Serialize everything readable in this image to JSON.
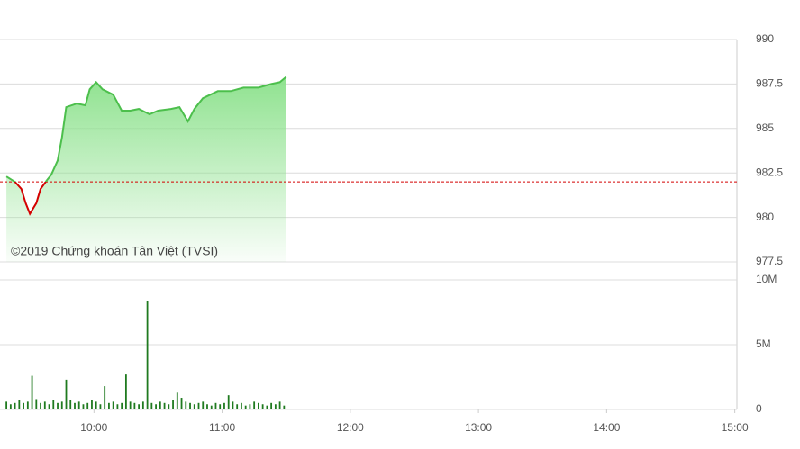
{
  "chart_data": [
    {
      "type": "line",
      "annotation": "©2019 Chứng khoán Tân Việt (TVSI)",
      "x": [
        559,
        563,
        566,
        568,
        570,
        572,
        573,
        575,
        578,
        580,
        583,
        585,
        587,
        592,
        596,
        598,
        601,
        604,
        609,
        613,
        617,
        621,
        626,
        630,
        636,
        640,
        644,
        647,
        651,
        658,
        664,
        670,
        677,
        683,
        687,
        690
      ],
      "values": [
        982.3,
        982.0,
        981.6,
        980.8,
        980.2,
        980.6,
        980.8,
        981.6,
        982.1,
        982.4,
        983.2,
        984.5,
        986.2,
        986.4,
        986.3,
        987.2,
        987.6,
        987.2,
        986.9,
        986.0,
        986.0,
        986.1,
        985.8,
        986.0,
        986.1,
        986.2,
        985.4,
        986.1,
        986.7,
        987.1,
        987.1,
        987.3,
        987.3,
        987.5,
        987.6,
        987.9
      ],
      "color": "#4cbf4c",
      "below_color": "#d40000",
      "fill_color": "#8fe28f",
      "reference_line": 982,
      "reference_color": "#d40000",
      "xlim": [
        556,
        901
      ],
      "ylim": [
        977.5,
        990
      ],
      "yticks": [
        977.5,
        980,
        982.5,
        985,
        987.5,
        990
      ],
      "grid": true
    },
    {
      "type": "bar",
      "x": [
        559,
        561,
        563,
        565,
        567,
        569,
        571,
        573,
        575,
        577,
        579,
        581,
        583,
        585,
        587,
        589,
        591,
        593,
        595,
        597,
        599,
        601,
        603,
        605,
        607,
        609,
        611,
        613,
        615,
        617,
        619,
        621,
        623,
        625,
        627,
        629,
        631,
        633,
        635,
        637,
        639,
        641,
        643,
        645,
        647,
        649,
        651,
        653,
        655,
        657,
        659,
        661,
        663,
        665,
        667,
        669,
        671,
        673,
        675,
        677,
        679,
        681,
        683,
        685,
        687,
        689
      ],
      "values": [
        600000,
        400000,
        500000,
        700000,
        500000,
        600000,
        2600000,
        800000,
        500000,
        600000,
        400000,
        700000,
        500000,
        600000,
        2300000,
        700000,
        500000,
        600000,
        400000,
        500000,
        700000,
        600000,
        400000,
        1800000,
        500000,
        600000,
        400000,
        500000,
        2700000,
        600000,
        500000,
        400000,
        600000,
        8400000,
        500000,
        400000,
        600000,
        500000,
        400000,
        700000,
        1300000,
        900000,
        600000,
        500000,
        400000,
        500000,
        600000,
        400000,
        300000,
        500000,
        400000,
        500000,
        1100000,
        600000,
        400000,
        500000,
        300000,
        400000,
        600000,
        500000,
        400000,
        300000,
        500000,
        400000,
        600000,
        300000
      ],
      "color": "#1f7a1f",
      "xlim": [
        556,
        901
      ],
      "xticks": [
        {
          "value": 600,
          "label": "10:00"
        },
        {
          "value": 660,
          "label": "11:00"
        },
        {
          "value": 720,
          "label": "12:00"
        },
        {
          "value": 780,
          "label": "13:00"
        },
        {
          "value": 840,
          "label": "14:00"
        },
        {
          "value": 900,
          "label": "15:00"
        }
      ],
      "ylim": [
        0,
        10000000
      ],
      "yticks": [
        0,
        {
          "value": 5000000,
          "label": "5M"
        },
        {
          "value": 10000000,
          "label": "10M"
        }
      ],
      "grid": true
    }
  ]
}
